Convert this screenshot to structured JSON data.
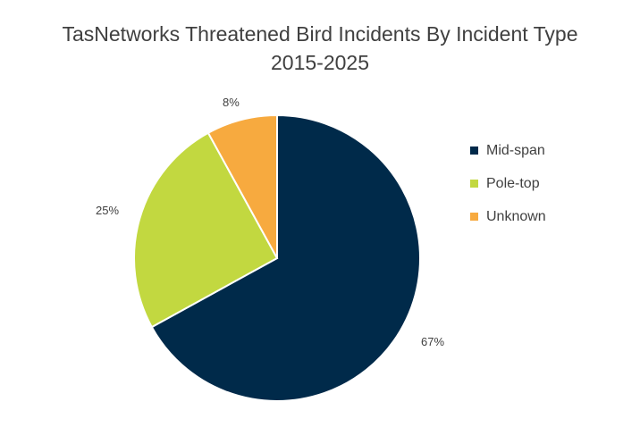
{
  "chart_data": {
    "type": "pie",
    "title": "TasNetworks Threatened Bird Incidents By Incident Type 2015-2025",
    "title_lines": [
      "TasNetworks Threatened Bird Incidents By Incident Type",
      "2015-2025"
    ],
    "categories": [
      "Mid-span",
      "Pole-top",
      "Unknown"
    ],
    "values": [
      67,
      25,
      8
    ],
    "labels": [
      "67%",
      "25%",
      "8%"
    ],
    "colors": [
      "#002A4A",
      "#C2D840",
      "#F7AA3F"
    ],
    "legend_position": "right"
  }
}
